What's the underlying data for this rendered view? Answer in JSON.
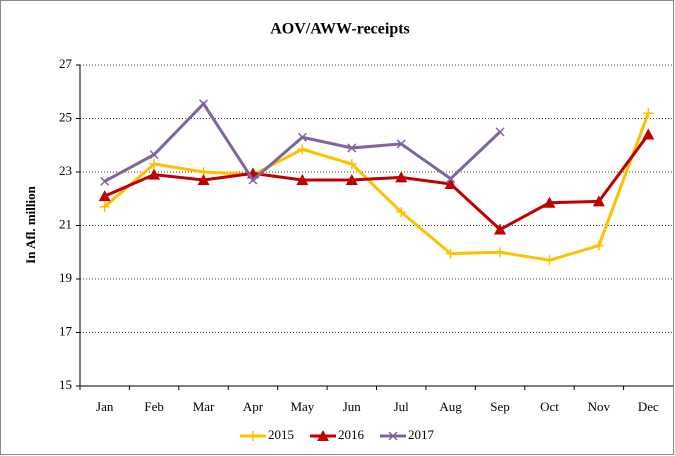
{
  "chart_data": {
    "type": "line",
    "title": "AOV/AWW-receipts",
    "y_label": "In Afl. million",
    "categories": [
      "Jan",
      "Feb",
      "Mar",
      "Apr",
      "May",
      "Jun",
      "Jul",
      "Aug",
      "Sep",
      "Oct",
      "Nov",
      "Dec"
    ],
    "series": [
      {
        "name": "2015",
        "color": "#ffc000",
        "marker": "plus",
        "values": [
          21.7,
          23.3,
          23.0,
          22.9,
          23.85,
          23.3,
          21.5,
          19.95,
          20.0,
          19.7,
          20.25,
          25.2
        ]
      },
      {
        "name": "2016",
        "color": "#c00000",
        "marker": "triangle",
        "values": [
          22.1,
          22.9,
          22.7,
          22.95,
          22.7,
          22.7,
          22.8,
          22.55,
          20.85,
          21.85,
          21.9,
          24.4
        ]
      },
      {
        "name": "2017",
        "color": "#8064a2",
        "marker": "x",
        "values": [
          22.65,
          23.65,
          25.55,
          22.7,
          24.3,
          23.9,
          24.05,
          22.75,
          24.5,
          null,
          null,
          null
        ]
      }
    ],
    "ylim": [
      15,
      27
    ],
    "yticks": [
      15,
      17,
      19,
      21,
      23,
      25,
      27
    ],
    "grid": true,
    "legend": "bottom"
  }
}
